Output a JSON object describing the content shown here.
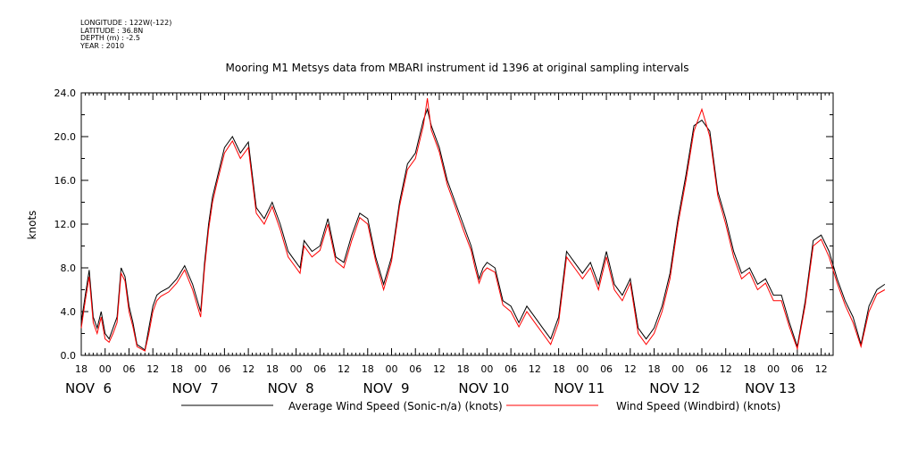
{
  "metadata": {
    "longitude": "LONGITUDE : 122W(-122)",
    "latitude": "LATITUDE : 36.8N",
    "depth": "DEPTH (m) : -2.5",
    "year": "YEAR : 2010"
  },
  "chart_data": {
    "type": "line",
    "title": "Mooring M1 Metsys data from MBARI instrument id 1396 at original sampling intervals",
    "xlabel": "",
    "ylabel": "knots",
    "xlim": [
      "2010-11-05T18:00",
      "2010-11-13T15:00"
    ],
    "ylim": [
      0,
      24
    ],
    "ytick_labels": [
      "0.0",
      "4.0",
      "8.0",
      "12.0",
      "16.0",
      "20.0",
      "24.0"
    ],
    "hour_ticks": [
      "18",
      "00",
      "06",
      "12",
      "18",
      "00",
      "06",
      "12",
      "18",
      "00",
      "06",
      "12",
      "18",
      "00",
      "06",
      "12",
      "18",
      "00",
      "06",
      "12",
      "18",
      "00",
      "06",
      "12",
      "18",
      "00",
      "06",
      "12",
      "18",
      "00",
      "06",
      "12"
    ],
    "day_labels": [
      "NOV  6",
      "NOV  7",
      "NOV  8",
      "NOV  9",
      "NOV 10",
      "NOV 11",
      "NOV 12",
      "NOV 13"
    ],
    "grid": false,
    "legend_position": "bottom",
    "x_units": "hours after 2010-11-05 18:00",
    "series": [
      {
        "name": "Average Wind Speed (Sonic-n/a) (knots)",
        "color": "#000000",
        "x": [
          0,
          1,
          2,
          3,
          4,
          5,
          6,
          7,
          8,
          9,
          10,
          11,
          12,
          13,
          14,
          16,
          17,
          18,
          19,
          20,
          22,
          24,
          26,
          28,
          30,
          31,
          32,
          33,
          34,
          36,
          38,
          40,
          42,
          44,
          46,
          48,
          50,
          52,
          54,
          55,
          56,
          58,
          60,
          62,
          64,
          66,
          68,
          70,
          72,
          74,
          76,
          78,
          80,
          82,
          84,
          86,
          87,
          88,
          90,
          92,
          94,
          96,
          98,
          99,
          100,
          101,
          102,
          104,
          106,
          108,
          110,
          112,
          114,
          116,
          118,
          120,
          122,
          124,
          126,
          128,
          130,
          132,
          134,
          136,
          138,
          140,
          142,
          144,
          146,
          148,
          150,
          152,
          154,
          156,
          158,
          160,
          162,
          164,
          166,
          168,
          170,
          172,
          174,
          176,
          178,
          180,
          182,
          184,
          186,
          188,
          190,
          192,
          194,
          196,
          198,
          200,
          202
        ],
        "y": [
          3.0,
          5.5,
          7.8,
          3.5,
          2.5,
          4.0,
          2.0,
          1.5,
          2.5,
          3.5,
          8.0,
          7.2,
          4.5,
          3.0,
          1.0,
          0.5,
          2.5,
          4.5,
          5.5,
          5.8,
          6.2,
          7.0,
          8.2,
          6.5,
          4.0,
          8.5,
          12.0,
          14.5,
          16.0,
          19.0,
          20.0,
          18.5,
          19.5,
          13.5,
          12.5,
          14.0,
          12.0,
          9.5,
          8.5,
          8.0,
          10.5,
          9.5,
          10.0,
          12.5,
          9.0,
          8.5,
          11.0,
          13.0,
          12.5,
          9.0,
          6.5,
          9.0,
          14.0,
          17.5,
          18.5,
          21.5,
          22.5,
          21.0,
          19.0,
          16.0,
          14.0,
          12.0,
          10.0,
          8.5,
          7.0,
          8.0,
          8.5,
          8.0,
          5.0,
          4.5,
          3.0,
          4.5,
          3.5,
          2.5,
          1.5,
          3.5,
          9.5,
          8.5,
          7.5,
          8.5,
          6.5,
          9.5,
          6.5,
          5.5,
          7.0,
          2.5,
          1.5,
          2.5,
          4.5,
          7.5,
          12.5,
          16.5,
          21.0,
          21.5,
          20.5,
          15.0,
          12.5,
          9.5,
          7.5,
          8.0,
          6.5,
          7.0,
          5.5,
          5.5,
          3.0,
          0.8,
          5.0,
          10.5,
          11.0,
          9.5,
          7.0,
          5.0,
          3.5,
          1.0,
          4.5,
          6.0,
          6.5
        ]
      },
      {
        "name": "Wind Speed (Windbird) (knots)",
        "color": "#ff0000",
        "x": [
          0,
          1,
          2,
          3,
          4,
          5,
          6,
          7,
          8,
          9,
          10,
          11,
          12,
          13,
          14,
          16,
          17,
          18,
          19,
          20,
          22,
          24,
          26,
          28,
          30,
          31,
          32,
          33,
          34,
          36,
          38,
          40,
          42,
          44,
          46,
          48,
          50,
          52,
          54,
          55,
          56,
          58,
          60,
          62,
          64,
          66,
          68,
          70,
          72,
          74,
          76,
          78,
          80,
          82,
          84,
          86,
          87,
          88,
          90,
          92,
          94,
          96,
          98,
          99,
          100,
          101,
          102,
          104,
          106,
          108,
          110,
          112,
          114,
          116,
          118,
          120,
          122,
          124,
          126,
          128,
          130,
          132,
          134,
          136,
          138,
          140,
          142,
          144,
          146,
          148,
          150,
          152,
          154,
          156,
          158,
          160,
          162,
          164,
          166,
          168,
          170,
          172,
          174,
          176,
          178,
          180,
          182,
          184,
          186,
          188,
          190,
          192,
          194,
          196,
          198,
          200,
          202
        ],
        "y": [
          2.5,
          5.0,
          7.2,
          3.0,
          2.0,
          3.5,
          1.5,
          1.2,
          2.0,
          3.0,
          7.5,
          6.8,
          4.0,
          2.6,
          0.8,
          0.4,
          2.0,
          4.0,
          5.0,
          5.4,
          5.8,
          6.6,
          7.8,
          6.0,
          3.5,
          8.0,
          11.5,
          14.0,
          15.6,
          18.5,
          19.6,
          18.0,
          19.0,
          13.0,
          12.0,
          13.6,
          11.5,
          9.0,
          8.0,
          7.5,
          10.0,
          9.0,
          9.6,
          12.0,
          8.6,
          8.0,
          10.5,
          12.6,
          12.0,
          8.6,
          6.0,
          8.6,
          13.6,
          17.0,
          18.0,
          21.0,
          23.5,
          20.6,
          18.6,
          15.6,
          13.6,
          11.5,
          9.6,
          8.0,
          6.6,
          7.6,
          8.0,
          7.6,
          4.6,
          4.0,
          2.6,
          4.0,
          3.0,
          2.0,
          1.0,
          3.0,
          9.0,
          8.0,
          7.0,
          8.0,
          6.0,
          9.0,
          6.0,
          5.0,
          6.6,
          2.0,
          1.0,
          2.0,
          4.0,
          7.0,
          12.0,
          16.0,
          20.5,
          22.5,
          20.0,
          14.6,
          12.0,
          9.0,
          7.0,
          7.6,
          6.0,
          6.6,
          5.0,
          5.0,
          2.6,
          0.6,
          4.6,
          10.0,
          10.6,
          9.0,
          6.6,
          4.6,
          3.0,
          0.8,
          4.0,
          5.6,
          6.0
        ]
      }
    ]
  }
}
